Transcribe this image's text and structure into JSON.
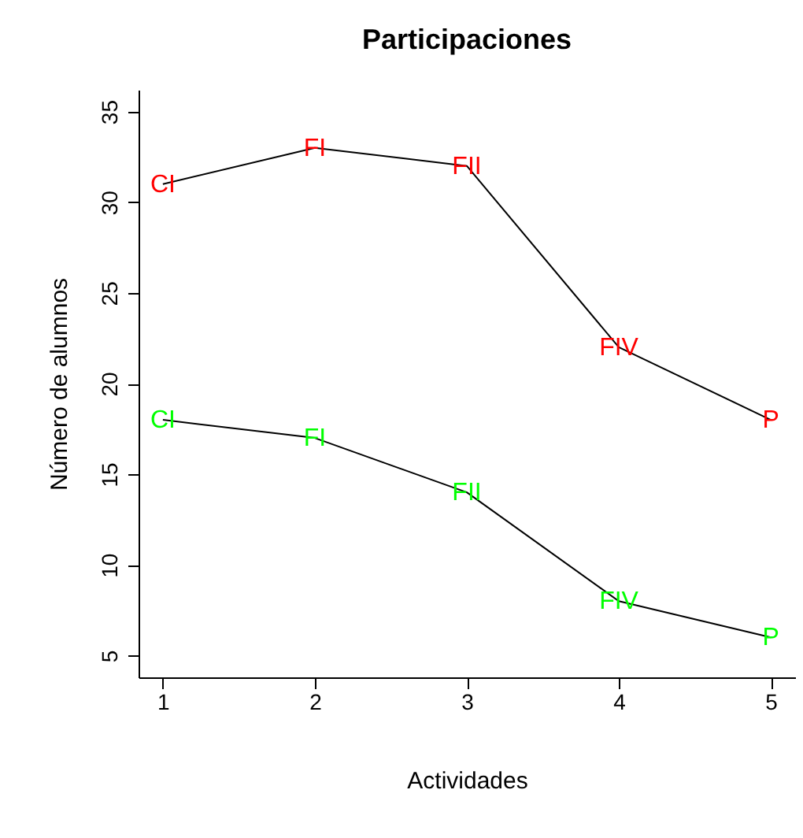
{
  "chart_data": {
    "type": "line",
    "title": "Participaciones",
    "xlabel": "Actividades",
    "ylabel": "Número de alumnos",
    "x": [
      1,
      2,
      3,
      4,
      5
    ],
    "series": [
      {
        "color": "#000000",
        "colors": [
          "#ff0000",
          "#ff0000",
          "#ff0000",
          "#ff0000",
          "#ff0000"
        ],
        "values": [
          31,
          33,
          32,
          22,
          18
        ]
      },
      {
        "color": "#000000",
        "colors": [
          "#00ff00",
          "#00ff00",
          "#00ff00",
          "#00ff00",
          "#00ff00"
        ],
        "values": [
          18,
          17,
          14,
          8,
          6
        ]
      }
    ],
    "annotations": [
      {
        "text": "CI",
        "x": 1,
        "y": 31
      },
      {
        "text": "FI",
        "x": 2,
        "y": 33
      },
      {
        "text": "FII",
        "x": 3,
        "y": 32
      },
      {
        "text": "FIV",
        "x": 4,
        "y": 22
      },
      {
        "text": "P",
        "x": 5,
        "y": 18
      },
      {
        "text": "CI",
        "x": 1,
        "y": 18
      },
      {
        "text": "FI",
        "x": 2,
        "y": 17
      },
      {
        "text": "FII",
        "x": 3,
        "y": 14
      },
      {
        "text": "FIV",
        "x": 4,
        "y": 8
      },
      {
        "text": "P",
        "x": 5,
        "y": 6
      }
    ],
    "xlim": [
      0.84,
      5.16
    ],
    "xticks": [
      1,
      2,
      3,
      4,
      5
    ],
    "ylim": [
      3.8,
      36.2
    ],
    "yticks": [
      5,
      10,
      15,
      20,
      25,
      30,
      35
    ],
    "grid": false
  }
}
